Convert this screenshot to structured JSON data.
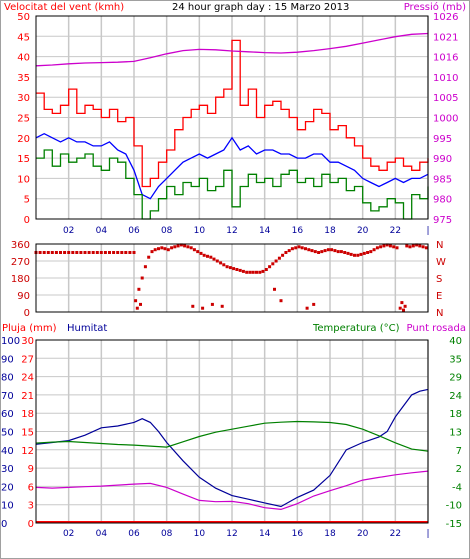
{
  "colors": {
    "wind": "#ff0000",
    "gust": "#ff0000",
    "avg_wind": "#0000ff",
    "min_wind": "#008000",
    "pressure": "#cc00cc",
    "direction": "#cc0000",
    "rain": "#ff0000",
    "humidity": "#000099",
    "temperature": "#008000",
    "dewpoint": "#cc00cc",
    "grid": "#c8c8c8",
    "frame": "#000000"
  },
  "chart_data": [
    {
      "type": "line",
      "title": "24 hour graph day : 15 Marzo 2013",
      "left_label": "Velocitat del vent (kmh)",
      "right_label": "Pressió (mb)",
      "x_ticks": [
        "02",
        "04",
        "06",
        "08",
        "10",
        "12",
        "14",
        "16",
        "18",
        "20",
        "22",
        "|"
      ],
      "y_left_ticks": [
        "0",
        "5",
        "10",
        "15",
        "20",
        "25",
        "30",
        "35",
        "40",
        "45",
        "50"
      ],
      "y_right_ticks": [
        "975",
        "980",
        "985",
        "990",
        "995",
        "1000",
        "1005",
        "1010",
        "1016",
        "1021",
        "1026"
      ],
      "ylim": [
        0,
        50
      ],
      "ylim_right": [
        975,
        1026
      ],
      "x_range": [
        0,
        24
      ],
      "series": [
        {
          "key": "gust",
          "axis": "left",
          "step": true,
          "x": [
            0,
            0.5,
            1,
            1.5,
            2,
            2.5,
            3,
            3.5,
            4,
            4.5,
            5,
            5.5,
            6,
            6.5,
            7,
            7.5,
            8,
            8.5,
            9,
            9.5,
            10,
            10.5,
            11,
            11.5,
            12,
            12.5,
            13,
            13.5,
            14,
            14.5,
            15,
            15.5,
            16,
            16.5,
            17,
            17.5,
            18,
            18.5,
            19,
            19.5,
            20,
            20.5,
            21,
            21.5,
            22,
            22.5,
            23,
            23.5,
            24
          ],
          "values": [
            31,
            27,
            26,
            28,
            32,
            26,
            28,
            27,
            25,
            27,
            24,
            25,
            18,
            8,
            10,
            14,
            17,
            22,
            25,
            27,
            28,
            26,
            30,
            32,
            44,
            28,
            32,
            25,
            28,
            29,
            27,
            25,
            22,
            24,
            27,
            26,
            22,
            23,
            20,
            18,
            15,
            13,
            12,
            14,
            15,
            13,
            12,
            14,
            15
          ]
        },
        {
          "key": "avg_wind",
          "axis": "left",
          "step": false,
          "x": [
            0,
            0.5,
            1,
            1.5,
            2,
            2.5,
            3,
            3.5,
            4,
            4.5,
            5,
            5.5,
            6,
            6.5,
            7,
            7.5,
            8,
            8.5,
            9,
            9.5,
            10,
            10.5,
            11,
            11.5,
            12,
            12.5,
            13,
            13.5,
            14,
            14.5,
            15,
            15.5,
            16,
            16.5,
            17,
            17.5,
            18,
            18.5,
            19,
            19.5,
            20,
            20.5,
            21,
            21.5,
            22,
            22.5,
            23,
            23.5,
            24
          ],
          "values": [
            20,
            21,
            20,
            19,
            20,
            19,
            19,
            18,
            18,
            19,
            17,
            16,
            12,
            6,
            5,
            8,
            10,
            12,
            14,
            15,
            16,
            15,
            16,
            17,
            20,
            17,
            18,
            16,
            17,
            17,
            16,
            16,
            15,
            15,
            16,
            16,
            14,
            14,
            13,
            12,
            10,
            9,
            8,
            9,
            10,
            9,
            10,
            10,
            11
          ]
        },
        {
          "key": "min_wind",
          "axis": "left",
          "step": true,
          "x": [
            0,
            0.5,
            1,
            1.5,
            2,
            2.5,
            3,
            3.5,
            4,
            4.5,
            5,
            5.5,
            6,
            6.5,
            7,
            7.5,
            8,
            8.5,
            9,
            9.5,
            10,
            10.5,
            11,
            11.5,
            12,
            12.5,
            13,
            13.5,
            14,
            14.5,
            15,
            15.5,
            16,
            16.5,
            17,
            17.5,
            18,
            18.5,
            19,
            19.5,
            20,
            20.5,
            21,
            21.5,
            22,
            22.5,
            23,
            23.5,
            24
          ],
          "values": [
            15,
            17,
            13,
            16,
            14,
            15,
            16,
            13,
            12,
            15,
            14,
            10,
            6,
            0,
            2,
            5,
            8,
            6,
            9,
            8,
            10,
            7,
            8,
            12,
            3,
            8,
            11,
            9,
            10,
            8,
            11,
            12,
            9,
            10,
            8,
            11,
            9,
            10,
            7,
            8,
            4,
            2,
            3,
            5,
            4,
            0,
            6,
            5,
            8
          ]
        },
        {
          "key": "pressure",
          "axis": "right",
          "step": false,
          "x": [
            0,
            1,
            2,
            3,
            4,
            5,
            6,
            7,
            8,
            9,
            10,
            11,
            12,
            13,
            14,
            15,
            16,
            17,
            18,
            19,
            20,
            21,
            22,
            23,
            24
          ],
          "values": [
            1013.5,
            1013.7,
            1014,
            1014.2,
            1014.3,
            1014.4,
            1014.6,
            1015.5,
            1016.5,
            1017.3,
            1017.6,
            1017.5,
            1017.2,
            1017,
            1016.8,
            1016.7,
            1016.9,
            1017.3,
            1017.8,
            1018.4,
            1019.2,
            1020,
            1020.8,
            1021.4,
            1021.6
          ]
        }
      ]
    },
    {
      "type": "scatter",
      "title": "",
      "left_ticks": [
        "360",
        "270",
        "180",
        "90",
        "0"
      ],
      "right_ticks": [
        "N",
        "W",
        "S",
        "E",
        "N"
      ],
      "ylim": [
        0,
        360
      ],
      "x_range": [
        0,
        24
      ],
      "series": [
        {
          "key": "direction",
          "x": [
            0,
            0.25,
            0.5,
            0.75,
            1,
            1.25,
            1.5,
            1.75,
            2,
            2.25,
            2.5,
            2.75,
            3,
            3.25,
            3.5,
            3.75,
            4,
            4.25,
            4.5,
            4.75,
            5,
            5.25,
            5.5,
            5.75,
            6,
            6.1,
            6.3,
            6.5,
            6.7,
            6.9,
            7.1,
            7.3,
            7.5,
            7.7,
            7.9,
            8.1,
            8.3,
            8.5,
            8.7,
            8.9,
            9.1,
            9.3,
            9.5,
            9.7,
            9.9,
            10.1,
            10.3,
            10.5,
            10.7,
            10.9,
            11.1,
            11.3,
            11.5,
            11.7,
            11.9,
            12.1,
            12.3,
            12.5,
            12.7,
            12.9,
            13.1,
            13.3,
            13.5,
            13.7,
            13.9,
            14.1,
            14.3,
            14.5,
            14.7,
            14.9,
            15.1,
            15.3,
            15.5,
            15.7,
            15.9,
            16.1,
            16.3,
            16.5,
            16.7,
            16.9,
            17.1,
            17.3,
            17.5,
            17.7,
            17.9,
            18.1,
            18.3,
            18.5,
            18.7,
            18.9,
            19.1,
            19.3,
            19.5,
            19.7,
            19.9,
            20.1,
            20.3,
            20.5,
            20.7,
            20.9,
            21.1,
            21.3,
            21.5,
            21.7,
            21.9,
            22.1,
            22.3,
            22.5,
            22.7,
            22.9,
            23.1,
            23.3,
            23.5,
            23.7,
            23.9,
            6.2,
            6.4,
            9.6,
            10.2,
            10.8,
            11.4,
            16.6,
            17.0,
            22.4,
            22.6,
            14.6,
            15.0
          ],
          "values": [
            315,
            315,
            315,
            315,
            315,
            315,
            315,
            315,
            315,
            315,
            315,
            315,
            315,
            315,
            315,
            315,
            315,
            315,
            315,
            315,
            315,
            315,
            315,
            315,
            315,
            60,
            120,
            180,
            240,
            290,
            320,
            330,
            335,
            340,
            335,
            330,
            340,
            345,
            350,
            355,
            350,
            345,
            340,
            330,
            320,
            310,
            300,
            295,
            290,
            280,
            270,
            260,
            250,
            240,
            235,
            230,
            225,
            220,
            215,
            210,
            210,
            210,
            210,
            210,
            215,
            225,
            240,
            255,
            270,
            285,
            300,
            315,
            325,
            335,
            340,
            345,
            340,
            335,
            330,
            325,
            320,
            315,
            320,
            325,
            330,
            330,
            325,
            320,
            320,
            315,
            310,
            305,
            300,
            300,
            305,
            310,
            315,
            320,
            330,
            340,
            345,
            350,
            355,
            350,
            345,
            340,
            20,
            10,
            350,
            345,
            350,
            355,
            350,
            345,
            340,
            20,
            40,
            30,
            20,
            40,
            30,
            20,
            40,
            50,
            30,
            120,
            60
          ]
        }
      ]
    },
    {
      "type": "line",
      "title": "",
      "rain_label": "Pluja (mm)",
      "humidity_label": "Humitat",
      "temp_label": "Temperatura (°C)",
      "dew_label": "Punt rosada",
      "x_ticks": [
        "02",
        "04",
        "06",
        "08",
        "10",
        "12",
        "14",
        "16",
        "18",
        "20",
        "22",
        "|"
      ],
      "rain_ticks": [
        "0",
        "3",
        "6",
        "9",
        "12",
        "15",
        "18",
        "21",
        "24",
        "27",
        "30"
      ],
      "humidity_ticks": [
        "0",
        "10",
        "20",
        "30",
        "40",
        "50",
        "60",
        "70",
        "80",
        "90",
        "100"
      ],
      "temp_ticks": [
        "-15",
        "-10",
        "-4",
        "2",
        "7",
        "13",
        "18",
        "24",
        "29",
        "35",
        "40"
      ],
      "ylim_humidity": [
        0,
        100
      ],
      "ylim_temp": [
        -15,
        40
      ],
      "x_range": [
        0,
        24
      ],
      "series": [
        {
          "key": "rain",
          "axis": "rain",
          "x": [
            0,
            24
          ],
          "values": [
            0,
            0
          ]
        },
        {
          "key": "humidity",
          "axis": "humidity",
          "x": [
            0,
            1,
            2,
            3,
            4,
            5,
            6,
            6.5,
            7,
            7.5,
            8,
            9,
            10,
            11,
            12,
            13,
            14,
            15,
            16,
            17,
            18,
            19,
            20,
            21,
            21.5,
            22,
            22.5,
            23,
            23.5,
            24
          ],
          "values": [
            43,
            44,
            45,
            48,
            52,
            53,
            55,
            57,
            55,
            50,
            44,
            34,
            25,
            19,
            15,
            13,
            11,
            9,
            14,
            18,
            26,
            40,
            44,
            47,
            50,
            58,
            64,
            70,
            72,
            73
          ]
        },
        {
          "key": "temperature",
          "axis": "temp",
          "x": [
            0,
            1,
            2,
            3,
            4,
            5,
            6,
            7,
            8,
            9,
            10,
            11,
            12,
            13,
            14,
            15,
            16,
            17,
            18,
            19,
            20,
            21,
            22,
            23,
            24
          ],
          "values": [
            9,
            9.3,
            9.5,
            9.2,
            8.9,
            8.6,
            8.4,
            8.1,
            7.8,
            9.4,
            11,
            12.3,
            13.2,
            14.1,
            15,
            15.3,
            15.5,
            15.4,
            15.2,
            14.6,
            13.2,
            11.2,
            9.1,
            7.2,
            6.6
          ]
        },
        {
          "key": "dewpoint",
          "axis": "temp",
          "x": [
            0,
            1,
            2,
            3,
            4,
            5,
            6,
            7,
            8,
            9,
            10,
            11,
            12,
            13,
            14,
            15,
            16,
            17,
            18,
            19,
            20,
            21,
            22,
            23,
            24
          ],
          "values": [
            -4.3,
            -4.5,
            -4.3,
            -4.1,
            -3.9,
            -3.6,
            -3.3,
            -3.1,
            -4.3,
            -6.3,
            -8.2,
            -8.6,
            -8.5,
            -9.2,
            -10.4,
            -10.9,
            -9.2,
            -6.9,
            -5.3,
            -3.8,
            -2.1,
            -1.3,
            -0.5,
            0.1,
            0.6
          ]
        }
      ]
    }
  ]
}
